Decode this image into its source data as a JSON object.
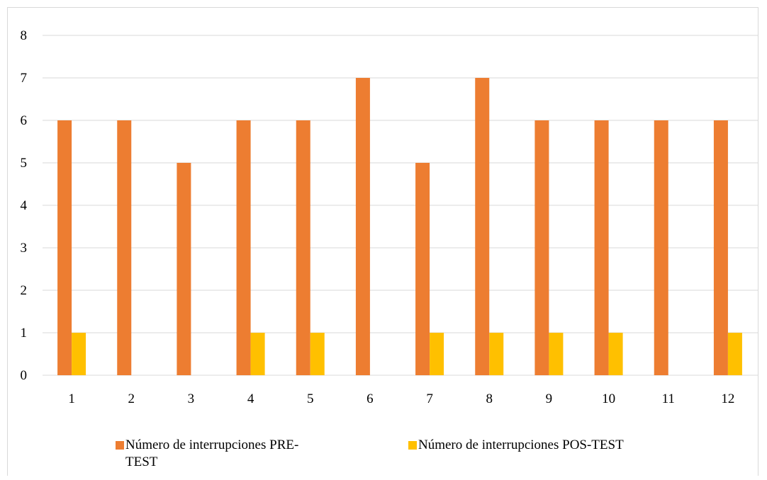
{
  "chart_data": {
    "type": "bar",
    "categories": [
      "1",
      "2",
      "3",
      "4",
      "5",
      "6",
      "7",
      "8",
      "9",
      "10",
      "11",
      "12"
    ],
    "series": [
      {
        "name": "Número de interrupciones PRE-TEST",
        "color": "#ED7D31",
        "values": [
          6,
          6,
          5,
          6,
          6,
          7,
          5,
          7,
          6,
          6,
          6,
          6
        ]
      },
      {
        "name": "Número de interrupciones POS-TEST",
        "color": "#FFC000",
        "values": [
          1,
          0,
          0,
          1,
          1,
          0,
          1,
          1,
          1,
          1,
          0,
          1
        ]
      }
    ],
    "yticks": [
      "0",
      "1",
      "2",
      "3",
      "4",
      "5",
      "6",
      "7",
      "8"
    ],
    "ylim": [
      0,
      8
    ],
    "grid": true,
    "legend_position": "bottom",
    "title": "",
    "xlabel": "",
    "ylabel": ""
  }
}
